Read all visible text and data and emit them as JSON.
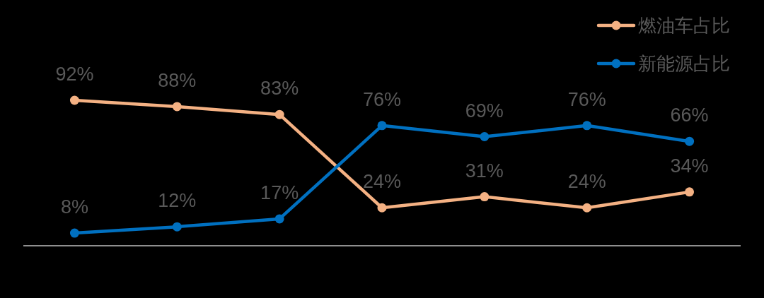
{
  "chart_data": {
    "type": "line",
    "categories": [
      null,
      null,
      null,
      null,
      null,
      null,
      null
    ],
    "series": [
      {
        "name": "燃油车占比",
        "color": "#f4b183",
        "values": [
          92,
          88,
          83,
          24,
          31,
          24,
          34
        ],
        "value_labels": [
          "92%",
          "88%",
          "83%",
          "24%",
          "31%",
          "24%",
          "34%"
        ]
      },
      {
        "name": "新能源占比",
        "color": "#0070c0",
        "values": [
          8,
          12,
          17,
          76,
          69,
          76,
          66
        ],
        "value_labels": [
          "8%",
          "12%",
          "17%",
          "76%",
          "69%",
          "76%",
          "66%"
        ]
      }
    ],
    "legend": "top right",
    "marker": "circle",
    "line_style": "solid"
  }
}
